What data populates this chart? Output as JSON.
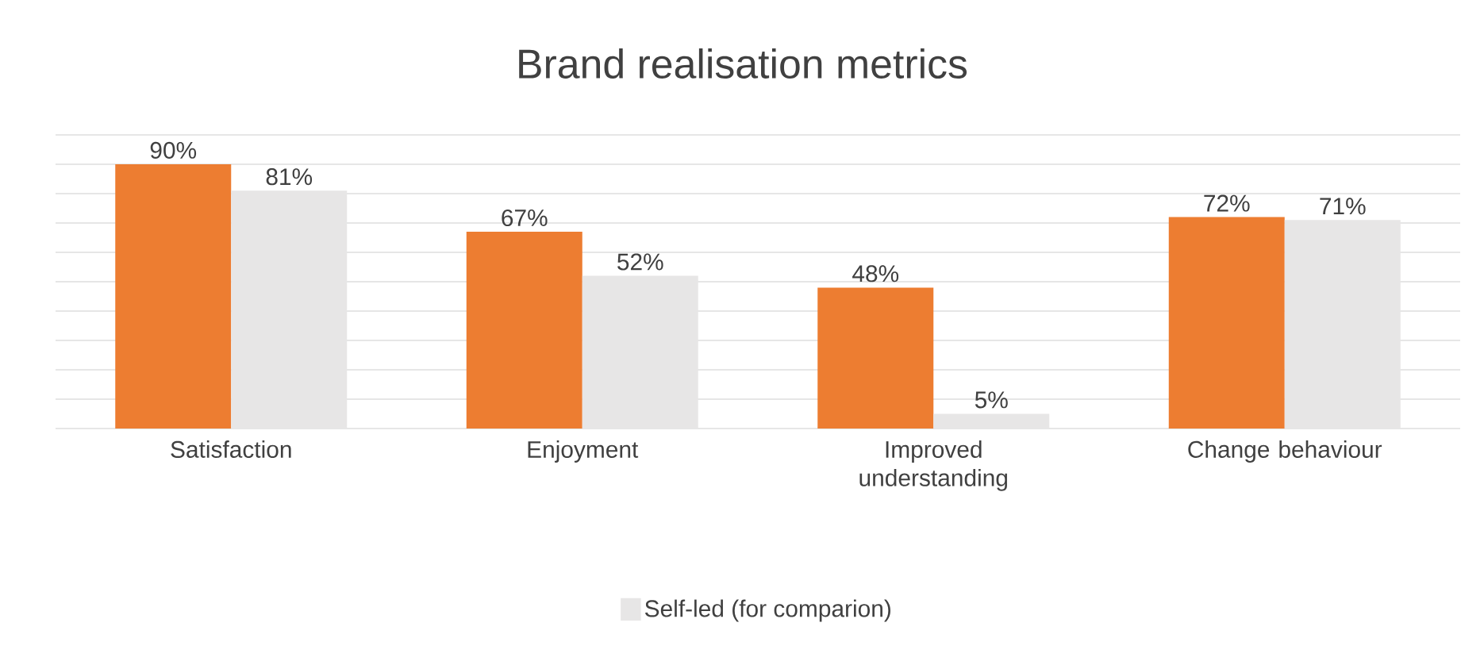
{
  "chart_data": {
    "type": "bar",
    "title": "Brand realisation metrics",
    "categories": [
      "Satisfaction",
      "Enjoyment",
      "Improved understanding",
      "Change behaviour"
    ],
    "series": [
      {
        "color": "#ed7d31",
        "values": [
          90,
          67,
          48,
          72
        ],
        "value_labels": [
          "90%",
          "67%",
          "48%",
          "72%"
        ]
      },
      {
        "name": "Self-led (for comparion)",
        "color": "#e7e6e6",
        "values": [
          81,
          52,
          5,
          71
        ],
        "value_labels": [
          "81%",
          "52%",
          "5%",
          "71%"
        ]
      }
    ],
    "ylim": [
      0,
      100
    ],
    "yticks": [
      {
        "value": 0,
        "label": null
      },
      {
        "value": 10,
        "label": null
      },
      {
        "value": 20,
        "label": null
      },
      {
        "value": 30,
        "label": null
      },
      {
        "value": 40,
        "label": null
      },
      {
        "value": 50,
        "label": null
      },
      {
        "value": 60,
        "label": null
      },
      {
        "value": 70,
        "label": null
      },
      {
        "value": 80,
        "label": null
      },
      {
        "value": 90,
        "label": null
      },
      {
        "value": 100,
        "label": null
      }
    ],
    "grid": "y",
    "tick_labels": "x",
    "legend": "bottom"
  }
}
